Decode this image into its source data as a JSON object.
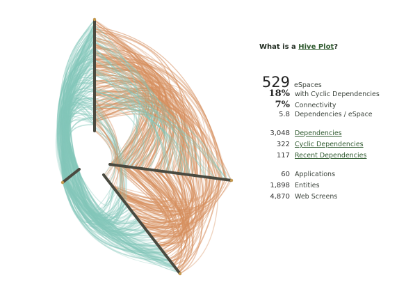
{
  "title": {
    "prefix": "What is a ",
    "link": "Hive Plot",
    "suffix": "?"
  },
  "stats": {
    "espaces": {
      "value": "529",
      "label": "eSpaces"
    },
    "cyclic": {
      "value": "18%",
      "label": "with Cyclic Dependencies"
    },
    "connectivity": {
      "value": "7%",
      "label": "Connectivity"
    },
    "deps_per": {
      "value": "5.8",
      "label": "Dependencies / eSpace"
    },
    "dependencies": {
      "value": "3,048",
      "label": "Dependencies"
    },
    "cyclic_deps": {
      "value": "322",
      "label": "Cyclic Dependencies"
    },
    "recent_deps": {
      "value": "117",
      "label": "Recent Dependencies"
    },
    "applications": {
      "value": "60",
      "label": "Applications"
    },
    "entities": {
      "value": "1,898",
      "label": "Entities"
    },
    "web_screens": {
      "value": "4,870",
      "label": "Web Screens"
    }
  },
  "colors": {
    "teal": "#84c7ba",
    "orange": "#d68f5e",
    "axis": "#4a4a40",
    "link": "#2f5a2f"
  }
}
